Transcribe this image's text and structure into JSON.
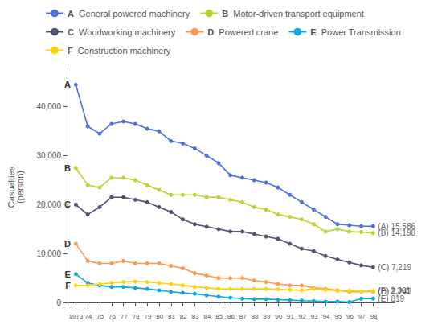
{
  "chart_data": {
    "type": "line",
    "ylabel": "Casualties\n(person)",
    "x": [
      1973,
      1974,
      1975,
      1976,
      1977,
      1978,
      1979,
      1980,
      1981,
      1982,
      1983,
      1984,
      1985,
      1986,
      1987,
      1988,
      1989,
      1990,
      1991,
      1992,
      1993,
      1994,
      1995,
      1996,
      1997,
      1998
    ],
    "xlim": [
      1972.3,
      1999.8
    ],
    "xticks": [
      1973,
      {
        "value": 1974,
        "label": "'74"
      },
      {
        "value": 1975,
        "label": "'75"
      },
      {
        "value": 1976,
        "label": "'76"
      },
      {
        "value": 1977,
        "label": "'77"
      },
      {
        "value": 1978,
        "label": "'78"
      },
      {
        "value": 1979,
        "label": "'79"
      },
      {
        "value": 1980,
        "label": "'80"
      },
      {
        "value": 1981,
        "label": "'81"
      },
      {
        "value": 1982,
        "label": "'82"
      },
      {
        "value": 1983,
        "label": "'83"
      },
      {
        "value": 1984,
        "label": "'84"
      },
      {
        "value": 1985,
        "label": "'85"
      },
      {
        "value": 1986,
        "label": "'86"
      },
      {
        "value": 1987,
        "label": "'87"
      },
      {
        "value": 1988,
        "label": "'88"
      },
      {
        "value": 1989,
        "label": "'89"
      },
      {
        "value": 1990,
        "label": "'90"
      },
      {
        "value": 1991,
        "label": "'91"
      },
      {
        "value": 1992,
        "label": "'92"
      },
      {
        "value": 1993,
        "label": "'93"
      },
      {
        "value": 1994,
        "label": "'94"
      },
      {
        "value": 1995,
        "label": "'95"
      },
      {
        "value": 1996,
        "label": "'96"
      },
      {
        "value": 1997,
        "label": "'97"
      },
      {
        "value": 1998,
        "label": "'98"
      }
    ],
    "ylim": [
      -800,
      48000
    ],
    "yticks": [
      0,
      {
        "value": 10000,
        "label": "10,000"
      },
      {
        "value": 20000,
        "label": "20,000"
      },
      {
        "value": 30000,
        "label": "30,000"
      },
      {
        "value": 40000,
        "label": "40,000"
      }
    ],
    "grid": false,
    "marker": "circle",
    "series": [
      {
        "letter": "A",
        "name": "General powered machinery",
        "values": [
          44500,
          36000,
          34500,
          36500,
          37000,
          36500,
          35500,
          35000,
          33000,
          32500,
          31500,
          30000,
          28500,
          26000,
          25500,
          25000,
          24500,
          23500,
          22000,
          20500,
          19000,
          17500,
          16000,
          15800,
          15600,
          15586
        ]
      },
      {
        "letter": "B",
        "name": "Motor-driven transport equipment",
        "values": [
          27500,
          24000,
          23500,
          25500,
          25500,
          25000,
          24000,
          23000,
          22000,
          22000,
          22000,
          21500,
          21500,
          21000,
          20500,
          19500,
          19000,
          18000,
          17500,
          17000,
          16000,
          14500,
          15000,
          14500,
          14400,
          14198
        ]
      },
      {
        "letter": "C",
        "name": "Woodworking machinery",
        "values": [
          20000,
          18000,
          19500,
          21500,
          21500,
          21000,
          20500,
          19500,
          18500,
          17000,
          16000,
          15500,
          15000,
          14500,
          14500,
          14000,
          13500,
          13000,
          12000,
          11000,
          10500,
          9500,
          8800,
          8200,
          7600,
          7219
        ]
      },
      {
        "letter": "D",
        "name": "Powered crane",
        "values": [
          12000,
          8500,
          8000,
          8000,
          8500,
          8000,
          8000,
          8000,
          7500,
          7000,
          6000,
          5500,
          5000,
          5000,
          5000,
          4500,
          4200,
          3800,
          3500,
          3500,
          3000,
          2800,
          2500,
          2200,
          2200,
          2242
        ]
      },
      {
        "letter": "E",
        "name": "Power Transmission",
        "values": [
          5800,
          4000,
          3500,
          3200,
          3200,
          3000,
          2800,
          2500,
          2200,
          2000,
          1800,
          1500,
          1200,
          1000,
          800,
          700,
          700,
          600,
          500,
          400,
          300,
          200,
          200,
          100,
          800,
          819
        ]
      },
      {
        "letter": "F",
        "name": "Construction machinery",
        "values": [
          3500,
          3500,
          3800,
          4000,
          4200,
          4300,
          4200,
          4000,
          3800,
          3500,
          3200,
          3000,
          2800,
          2800,
          2800,
          2800,
          2800,
          2700,
          2600,
          2500,
          2800,
          2600,
          2400,
          2400,
          2300,
          2361
        ]
      }
    ],
    "annotations": [
      {
        "text": "(A) 15,586",
        "x": 1998,
        "y": 15586
      },
      {
        "text": "(B) 14,198",
        "x": 1998,
        "y": 14198
      },
      {
        "text": "(C) 7,219",
        "x": 1998,
        "y": 7219
      },
      {
        "text": "(F) 2,361",
        "x": 1998,
        "y": 2361
      },
      {
        "text": "(D) 2,242",
        "x": 1998,
        "y": 2242
      },
      {
        "text": "(E) 819",
        "x": 1998,
        "y": 819
      }
    ]
  }
}
